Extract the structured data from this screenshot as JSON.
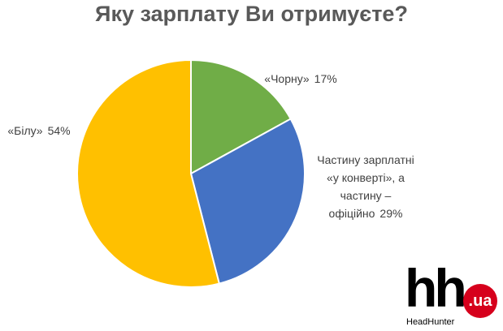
{
  "chart_data": {
    "type": "pie",
    "title": "Яку зарплату Ви отримуєте?",
    "categories": [
      "«Чорну»",
      "Частину зарплатні «у конверті», а частину – офіційно",
      "«Білу»"
    ],
    "values": [
      17,
      29,
      54
    ],
    "value_labels": [
      "17%",
      "29%",
      "54%"
    ],
    "colors": [
      "#70ad47",
      "#4472c4",
      "#ffc000"
    ]
  },
  "logo": {
    "mark": "hh",
    "domain": ".ua",
    "name": "HeadHunter"
  }
}
